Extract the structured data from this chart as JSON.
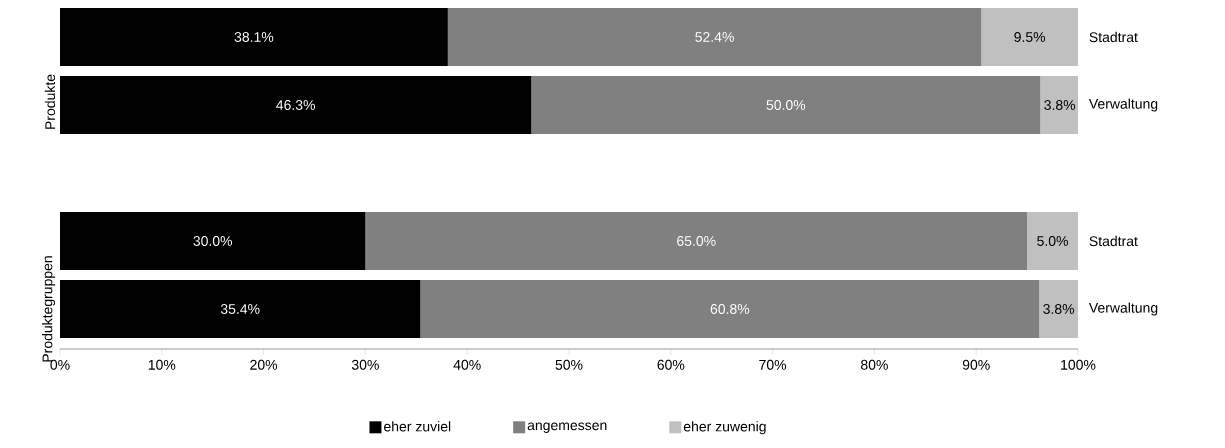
{
  "chart_data": [
    {
      "type": "bar",
      "orientation": "horizontal",
      "stacked": true,
      "ylabel": "Produkte",
      "categories": [
        "Stadtrat",
        "Verwaltung"
      ],
      "series": [
        {
          "color": "#000000",
          "values": [
            38.1,
            46.3
          ],
          "value_labels": [
            "38.1%",
            "46.3%"
          ]
        },
        {
          "color": "#808080",
          "values": [
            52.4,
            50.0
          ],
          "value_labels": [
            "52.4%",
            "50.0%"
          ]
        },
        {
          "color": "#c0c0c0",
          "values": [
            9.5,
            3.8
          ],
          "value_labels": [
            "9.5%",
            "3.8%"
          ]
        }
      ],
      "xlim": [
        0,
        100
      ],
      "tick_labels": "y"
    },
    {
      "type": "bar",
      "orientation": "horizontal",
      "stacked": true,
      "ylabel": "Produktegruppen",
      "categories": [
        "Stadtrat",
        "Verwaltung"
      ],
      "series": [
        {
          "name": "eher zuviel",
          "color": "#000000",
          "values": [
            30.0,
            35.4
          ],
          "value_labels": [
            "30.0%",
            "35.4%"
          ]
        },
        {
          "name": "angemessen",
          "color": "#808080",
          "values": [
            65.0,
            60.8
          ],
          "value_labels": [
            "65.0%",
            "60.8%"
          ]
        },
        {
          "name": "eher zuwenig",
          "color": "#c0c0c0",
          "values": [
            5.0,
            3.8
          ],
          "value_labels": [
            "5.0%",
            "3.8%"
          ]
        }
      ],
      "xlim": [
        0,
        100
      ],
      "xticks": [
        {
          "value": 0,
          "label": "0%"
        },
        {
          "value": 10,
          "label": "10%"
        },
        {
          "value": 20,
          "label": "20%"
        },
        {
          "value": 30,
          "label": "30%"
        },
        {
          "value": 40,
          "label": "40%"
        },
        {
          "value": 50,
          "label": "50%"
        },
        {
          "value": 60,
          "label": "60%"
        },
        {
          "value": 70,
          "label": "70%"
        },
        {
          "value": 80,
          "label": "80%"
        },
        {
          "value": 90,
          "label": "90%"
        },
        {
          "value": 100,
          "label": "100%"
        }
      ],
      "legend": "bottom"
    }
  ]
}
